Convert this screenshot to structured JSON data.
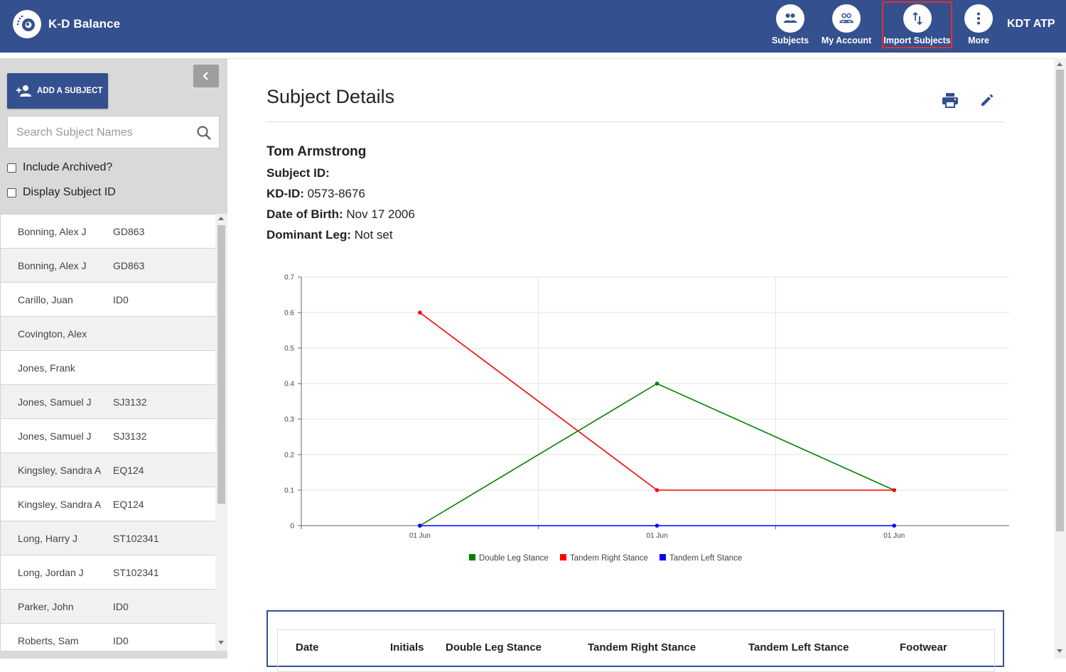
{
  "header": {
    "app_title": "K-D Balance",
    "logo_icon": "eye-logo-icon",
    "nav": [
      {
        "label": "Subjects",
        "icon": "people-icon"
      },
      {
        "label": "My Account",
        "icon": "account-group-icon"
      },
      {
        "label": "Import Subjects",
        "icon": "swap-vertical-icon"
      },
      {
        "label": "More",
        "icon": "dots-vertical-icon"
      }
    ],
    "user": "KDT ATP"
  },
  "sidebar": {
    "add_button": "ADD A SUBJECT",
    "search_placeholder": "Search Subject Names",
    "search_value": "",
    "include_archived": {
      "label": "Include Archived?",
      "checked": false
    },
    "display_subject_id": {
      "label": "Display Subject ID",
      "checked": false
    },
    "subjects": [
      {
        "name": "Bonning, Alex J",
        "code": "GD863"
      },
      {
        "name": "Bonning, Alex J",
        "code": "GD863"
      },
      {
        "name": "Carillo, Juan",
        "code": "ID0"
      },
      {
        "name": "Covington, Alex",
        "code": ""
      },
      {
        "name": "Jones, Frank",
        "code": ""
      },
      {
        "name": "Jones, Samuel J",
        "code": "SJ3132"
      },
      {
        "name": "Jones, Samuel J",
        "code": "SJ3132"
      },
      {
        "name": "Kingsley, Sandra A",
        "code": "EQ124"
      },
      {
        "name": "Kingsley, Sandra A",
        "code": "EQ124"
      },
      {
        "name": "Long, Harry J",
        "code": "ST102341"
      },
      {
        "name": "Long, Jordan J",
        "code": "ST102341"
      },
      {
        "name": "Parker, John",
        "code": "ID0"
      },
      {
        "name": "Roberts, Sam",
        "code": "ID0"
      }
    ]
  },
  "main": {
    "title": "Subject Details",
    "subject_name": "Tom Armstrong",
    "fields": {
      "subject_id_label": "Subject ID:",
      "subject_id_value": "",
      "kdid_label": "KD-ID:",
      "kdid_value": "0573-8676",
      "dob_label": "Date of Birth:",
      "dob_value": "Nov 17 2006",
      "leg_label": "Dominant Leg:",
      "leg_value": "Not set"
    },
    "table_headers": [
      "Date",
      "Initials",
      "Double Leg Stance",
      "Tandem Right Stance",
      "Tandem Left Stance",
      "Footwear"
    ]
  },
  "colors": {
    "header_bg": "#34508f",
    "double_leg": "#008000",
    "tandem_right": "#ff0000",
    "tandem_left": "#0000ff"
  },
  "chart_data": {
    "type": "line",
    "x": [
      "01 Jun",
      "01 Jun",
      "01 Jun"
    ],
    "ylim": [
      0,
      0.7
    ],
    "yticks": [
      0,
      0.1,
      0.2,
      0.3,
      0.4,
      0.5,
      0.6,
      0.7
    ],
    "grid": true,
    "legend_position": "bottom",
    "series": [
      {
        "name": "Double Leg Stance",
        "color": "#008000",
        "values": [
          0,
          0.4,
          0.1
        ]
      },
      {
        "name": "Tandem Right Stance",
        "color": "#ff0000",
        "values": [
          0.6,
          0.1,
          0.1
        ]
      },
      {
        "name": "Tandem Left Stance",
        "color": "#0000ff",
        "values": [
          0,
          0,
          0
        ]
      }
    ]
  }
}
